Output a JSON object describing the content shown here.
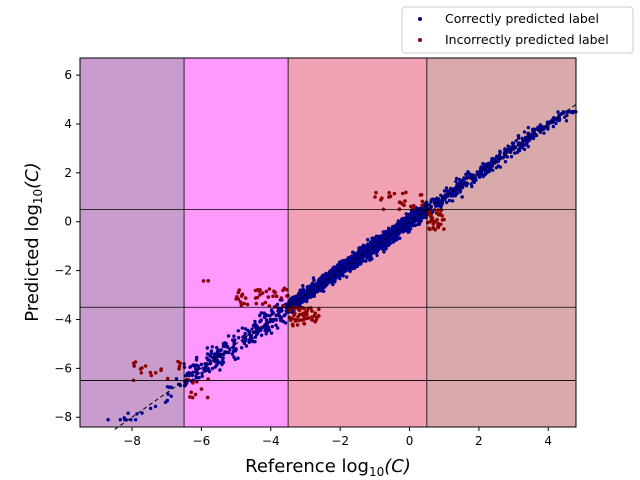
{
  "chart_data": {
    "type": "scatter",
    "title": "",
    "xlabel": "Reference log",
    "xlabel_subscript": "10",
    "xlabel_suffix": "(C)",
    "ylabel": "Predicted log",
    "ylabel_subscript": "10",
    "ylabel_suffix": "(C)",
    "xlim": [
      -9.5,
      4.8
    ],
    "ylim": [
      -8.4,
      6.7
    ],
    "xticks": [
      -8,
      -6,
      -4,
      -2,
      0,
      2,
      4
    ],
    "yticks": [
      -8,
      -6,
      -4,
      -2,
      0,
      2,
      4,
      6
    ],
    "grid": false,
    "legend_position": "top-right",
    "class_bands": [
      {
        "x_from": -9.5,
        "x_to": -6.5,
        "color": "#c89ccc"
      },
      {
        "x_from": -6.5,
        "x_to": -3.5,
        "color": "#ff98ff"
      },
      {
        "x_from": -3.5,
        "x_to": 0.5,
        "color": "#f0a2b4"
      },
      {
        "x_from": 0.5,
        "x_to": 4.8,
        "color": "#d9aaaa"
      }
    ],
    "class_boundaries_x": [
      -6.5,
      -3.5,
      0.5
    ],
    "class_boundaries_y": [
      -6.5,
      -3.5,
      0.5
    ],
    "identity_line": {
      "from": [
        -8.5,
        -8.5
      ],
      "to": [
        4.8,
        4.8
      ],
      "style": "dashed"
    },
    "series": [
      {
        "name": "Correctly predicted label",
        "color": "#00008b",
        "trend": "y approximately equals x",
        "clusters": [
          {
            "x_range": [
              -8.7,
              -6.6
            ],
            "y_range": [
              -7.9,
              -6.6
            ],
            "count": 22,
            "spread": 0.45
          },
          {
            "x_range": [
              -6.5,
              -3.5
            ],
            "y_range": [
              -6.5,
              -3.5
            ],
            "count": 260,
            "spread": 0.5
          },
          {
            "x_range": [
              -3.5,
              0.5
            ],
            "y_range": [
              -3.5,
              0.5
            ],
            "count": 1900,
            "spread": 0.3
          },
          {
            "x_range": [
              0.5,
              4.8
            ],
            "y_range": [
              0.5,
              4.2
            ],
            "count": 420,
            "spread": 0.3
          }
        ]
      },
      {
        "name": "Incorrectly predicted label",
        "color": "#8b0000",
        "clusters": [
          {
            "x_range": [
              -8.0,
              -6.6
            ],
            "y_range": [
              -6.5,
              -5.5
            ],
            "count": 18
          },
          {
            "x_range": [
              -6.5,
              -5.6
            ],
            "y_range": [
              -7.2,
              -6.4
            ],
            "count": 10
          },
          {
            "x_range": [
              -6.3,
              -5.7
            ],
            "y_range": [
              -2.5,
              -2.1
            ],
            "count": 2
          },
          {
            "x_range": [
              -5.0,
              -3.5
            ],
            "y_range": [
              -3.5,
              -2.7
            ],
            "count": 40
          },
          {
            "x_range": [
              -3.5,
              -2.6
            ],
            "y_range": [
              -4.3,
              -3.5
            ],
            "count": 55
          },
          {
            "x_range": [
              -1.0,
              0.5
            ],
            "y_range": [
              0.5,
              1.2
            ],
            "count": 25
          },
          {
            "x_range": [
              0.5,
              1.0
            ],
            "y_range": [
              -0.4,
              0.5
            ],
            "count": 35
          }
        ]
      }
    ]
  }
}
